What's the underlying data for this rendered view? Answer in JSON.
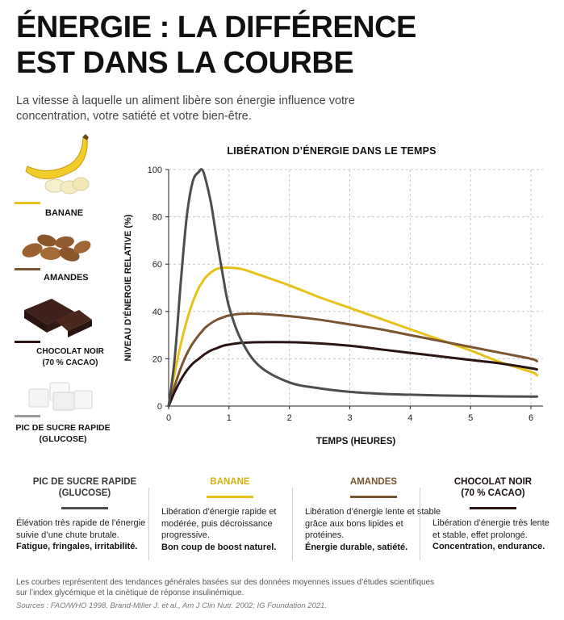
{
  "header": {
    "title": "ÉNERGIE : LA DIFFÉRENCE\nEST DANS LA COURBE",
    "subtitle": "La vitesse à laquelle un aliment libère son énergie influence votre concentration, votre satiété et votre bien-être."
  },
  "legend": [
    {
      "label": "BANANE",
      "color": "#e6c21a",
      "icon": "banana-icon"
    },
    {
      "label": "AMANDES",
      "color": "#7b5430",
      "icon": "almonds-icon"
    },
    {
      "label": "CHOCOLAT NOIR\n(70 % CACAO)",
      "color": "#2a1414",
      "icon": "chocolate-icon"
    },
    {
      "label": "PIC DE SUCRE RAPIDE\n(GLUCOSE)",
      "color": "#4d4d4d",
      "icon": "sugar-cubes-icon"
    }
  ],
  "chart_data": {
    "type": "line",
    "title": "LIBÉRATION D’ÉNERGIE DANS LE TEMPS",
    "xlabel": "TEMPS (HEURES)",
    "ylabel": "NIVEAU D’ÉNERGIE RELATIVE (%)",
    "xlim": [
      0,
      6.2
    ],
    "ylim": [
      0,
      100
    ],
    "xticks": [
      0,
      1,
      2,
      3,
      4,
      5,
      6
    ],
    "yticks": [
      0,
      20,
      40,
      60,
      80,
      100
    ],
    "grid": true,
    "x": [
      0,
      0.1,
      0.2,
      0.3,
      0.4,
      0.5,
      0.55,
      0.6,
      0.7,
      0.8,
      0.9,
      1.0,
      1.2,
      1.5,
      2.0,
      2.5,
      3.0,
      3.5,
      4.0,
      4.5,
      5.0,
      5.5,
      6.0,
      6.1
    ],
    "series": [
      {
        "name": "PIC DE SUCRE RAPIDE (GLUCOSE)",
        "color": "#4d4d4d",
        "values": [
          0,
          20,
          52,
          80,
          95,
          99,
          100,
          97,
          86,
          70,
          55,
          42,
          28,
          17,
          10,
          7.5,
          6,
          5.2,
          4.8,
          4.5,
          4.3,
          4.1,
          4,
          4
        ]
      },
      {
        "name": "BANANE",
        "color": "#e6c21a",
        "values": [
          0,
          14,
          26,
          36,
          44,
          50,
          52,
          54,
          56.5,
          58,
          58.5,
          58.5,
          58,
          55.5,
          51,
          46,
          41.5,
          37,
          32.5,
          28,
          23.5,
          18.5,
          14.5,
          13
        ]
      },
      {
        "name": "AMANDES",
        "color": "#7b5430",
        "values": [
          0,
          8.5,
          16,
          22,
          26.5,
          30,
          31.5,
          33,
          35,
          36.5,
          37.5,
          38.3,
          39,
          39,
          38,
          36.5,
          34.5,
          32.5,
          30,
          27.5,
          25,
          22.5,
          20,
          19
        ]
      },
      {
        "name": "CHOCOLAT NOIR (70 % CACAO)",
        "color": "#2a1414",
        "values": [
          0,
          6,
          11,
          15,
          18,
          20,
          21,
          22,
          23.5,
          24.5,
          25.5,
          26,
          26.7,
          27,
          27,
          26.5,
          25.5,
          24,
          22.5,
          21,
          19.5,
          18,
          16,
          15.5
        ]
      }
    ]
  },
  "cards": [
    {
      "title": "PIC DE SUCRE RAPIDE\n(GLUCOSE)",
      "color": "#4d4d4d",
      "title_color": "#3a3a3a",
      "desc": "Élévation très rapide de l’énergie suivie d’une chute brutale.",
      "emph": "Fatigue, fringales, irritabilité."
    },
    {
      "title": "BANANE",
      "color": "#e6c21a",
      "title_color": "#d6b012",
      "desc": "Libération d’énergie rapide et modérée, puis décroissance progressive.",
      "emph": "Bon coup de boost naturel."
    },
    {
      "title": "AMANDES",
      "color": "#7b5430",
      "title_color": "#7b5430",
      "desc": "Libération d’énergie lente et stable grâce aux bons lipides et protéines.",
      "emph": "Énergie durable, satiété."
    },
    {
      "title": "CHOCOLAT NOIR\n(70 % CACAO)",
      "color": "#2a1414",
      "title_color": "#1a1010",
      "desc": "Libération d’énergie très lente et stable, effet prolongé.",
      "emph": "Concentration, endurance."
    }
  ],
  "footer": {
    "note": "Les courbes représentent des tendances générales basées sur des données moyennes issues d’études scientifiques sur l’index glycémique et la cinétique de réponse insulinémique.",
    "sources": "Sources : FAO/WHO 1998, Brand-Miller J. et al., Am J Clin Nutr. 2002; IG Foundation 2021."
  }
}
